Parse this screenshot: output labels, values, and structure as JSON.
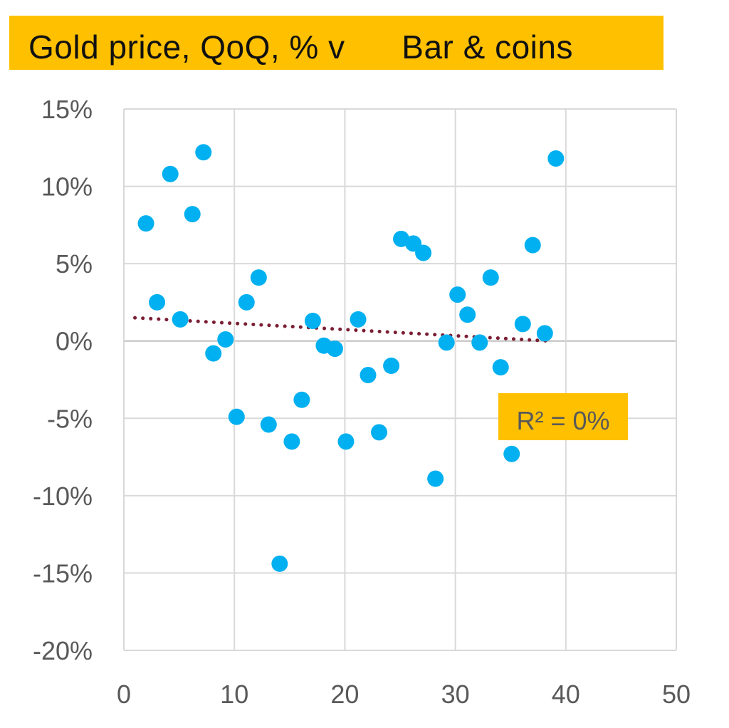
{
  "colors": {
    "accent": "#FFC000",
    "points": "#00B0F0",
    "trendline": "#7B1E33",
    "grid": "#D9D9D9",
    "axis_text": "#595959"
  },
  "chart_data": {
    "type": "scatter",
    "title": "Gold price, QoQ, % v      Bar & coins",
    "xlabel": "",
    "ylabel": "",
    "xlim": [
      0,
      50
    ],
    "ylim": [
      -0.2,
      0.15
    ],
    "x_ticks": [
      0,
      10,
      20,
      30,
      40,
      50
    ],
    "x_tick_labels": [
      "0",
      "10",
      "20",
      "30",
      "40",
      "50"
    ],
    "y_ticks": [
      0.15,
      0.1,
      0.05,
      0.0,
      -0.05,
      -0.1,
      -0.15,
      -0.2
    ],
    "y_tick_labels": [
      "15%",
      "10%",
      "5%",
      "0%",
      "-5%",
      "-10%",
      "-15%",
      "-20%"
    ],
    "grid": true,
    "annotation": "R² = 0%",
    "trendline": {
      "style": "dotted",
      "x": [
        1,
        38.5
      ],
      "y": [
        0.015,
        0.0
      ]
    },
    "points": [
      {
        "x": 2,
        "y": 0.076
      },
      {
        "x": 3,
        "y": 0.025
      },
      {
        "x": 4.2,
        "y": 0.108
      },
      {
        "x": 5.1,
        "y": 0.014
      },
      {
        "x": 6.2,
        "y": 0.082
      },
      {
        "x": 7.2,
        "y": 0.122
      },
      {
        "x": 8.1,
        "y": -0.008
      },
      {
        "x": 9.2,
        "y": 0.001
      },
      {
        "x": 10.2,
        "y": -0.049
      },
      {
        "x": 11.1,
        "y": 0.025
      },
      {
        "x": 12.2,
        "y": 0.041
      },
      {
        "x": 13.1,
        "y": -0.054
      },
      {
        "x": 14.1,
        "y": -0.144
      },
      {
        "x": 15.2,
        "y": -0.065
      },
      {
        "x": 16.1,
        "y": -0.038
      },
      {
        "x": 17.1,
        "y": 0.013
      },
      {
        "x": 18.1,
        "y": -0.003
      },
      {
        "x": 19.1,
        "y": -0.005
      },
      {
        "x": 20.1,
        "y": -0.065
      },
      {
        "x": 21.2,
        "y": 0.014
      },
      {
        "x": 22.1,
        "y": -0.022
      },
      {
        "x": 23.1,
        "y": -0.059
      },
      {
        "x": 24.2,
        "y": -0.016
      },
      {
        "x": 25.1,
        "y": 0.066
      },
      {
        "x": 26.2,
        "y": 0.063
      },
      {
        "x": 27.1,
        "y": 0.057
      },
      {
        "x": 28.2,
        "y": -0.089
      },
      {
        "x": 29.2,
        "y": -0.001
      },
      {
        "x": 30.2,
        "y": 0.03
      },
      {
        "x": 31.1,
        "y": 0.017
      },
      {
        "x": 32.2,
        "y": -0.001
      },
      {
        "x": 33.2,
        "y": 0.041
      },
      {
        "x": 34.1,
        "y": -0.017
      },
      {
        "x": 35.1,
        "y": -0.073
      },
      {
        "x": 36.1,
        "y": 0.011
      },
      {
        "x": 37.0,
        "y": 0.062
      },
      {
        "x": 38.1,
        "y": 0.005
      },
      {
        "x": 39.1,
        "y": 0.118
      }
    ]
  }
}
